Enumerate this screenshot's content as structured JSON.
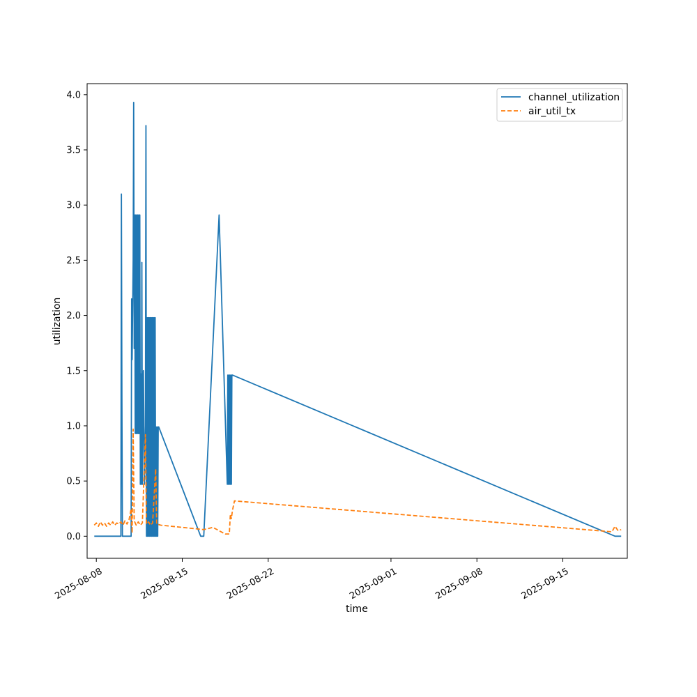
{
  "chart_data": {
    "type": "line",
    "title": "",
    "xlabel": "time",
    "ylabel": "utilization",
    "xlim": [
      "2025-08-07T06:00",
      "2025-09-20T06:00"
    ],
    "ylim": [
      -0.2,
      4.1
    ],
    "grid": false,
    "legend_position": "top-right",
    "x_ticks": [
      "2025-08-08",
      "2025-08-15",
      "2025-08-22",
      "2025-09-01",
      "2025-09-08",
      "2025-09-15"
    ],
    "y_ticks": [
      0.0,
      0.5,
      1.0,
      1.5,
      2.0,
      2.5,
      3.0,
      3.5,
      4.0
    ],
    "y_tick_labels": [
      "0.0",
      "0.5",
      "1.0",
      "1.5",
      "2.0",
      "2.5",
      "3.0",
      "3.5",
      "4.0"
    ],
    "series": [
      {
        "name": "channel_utilization",
        "color": "#1f77b4",
        "dash": "solid",
        "points": [
          [
            "2025-08-07T20:00",
            0.0
          ],
          [
            "2025-08-10T00:00",
            0.0
          ],
          [
            "2025-08-10T01:00",
            3.1
          ],
          [
            "2025-08-10T02:00",
            1.25
          ],
          [
            "2025-08-10T03:00",
            0.0
          ],
          [
            "2025-08-10T20:00",
            0.0
          ],
          [
            "2025-08-10T21:00",
            2.15
          ],
          [
            "2025-08-10T22:00",
            1.6
          ],
          [
            "2025-08-11T00:00",
            2.5
          ],
          [
            "2025-08-11T01:00",
            3.93
          ],
          [
            "2025-08-11T02:00",
            1.7
          ],
          [
            "2025-08-11T03:00",
            2.91
          ],
          [
            "2025-08-11T04:00",
            0.93
          ],
          [
            "2025-08-11T05:00",
            2.91
          ],
          [
            "2025-08-11T06:00",
            0.93
          ],
          [
            "2025-08-11T07:00",
            2.91
          ],
          [
            "2025-08-11T08:00",
            0.93
          ],
          [
            "2025-08-11T09:00",
            2.91
          ],
          [
            "2025-08-11T10:00",
            0.93
          ],
          [
            "2025-08-11T11:00",
            2.91
          ],
          [
            "2025-08-11T12:00",
            0.93
          ],
          [
            "2025-08-11T13:00",
            2.91
          ],
          [
            "2025-08-11T14:00",
            0.47
          ],
          [
            "2025-08-11T15:00",
            1.47
          ],
          [
            "2025-08-11T16:00",
            0.47
          ],
          [
            "2025-08-11T17:00",
            2.48
          ],
          [
            "2025-08-11T18:00",
            0.47
          ],
          [
            "2025-08-11T20:00",
            1.5
          ],
          [
            "2025-08-11T22:00",
            0.47
          ],
          [
            "2025-08-12T00:00",
            1.0
          ],
          [
            "2025-08-12T01:00",
            3.72
          ],
          [
            "2025-08-12T02:00",
            0.0
          ],
          [
            "2025-08-12T03:00",
            1.98
          ],
          [
            "2025-08-12T04:00",
            0.0
          ],
          [
            "2025-08-12T05:00",
            1.98
          ],
          [
            "2025-08-12T06:00",
            0.0
          ],
          [
            "2025-08-12T07:00",
            1.98
          ],
          [
            "2025-08-12T08:00",
            0.0
          ],
          [
            "2025-08-12T09:00",
            1.98
          ],
          [
            "2025-08-12T10:00",
            0.0
          ],
          [
            "2025-08-12T11:00",
            1.98
          ],
          [
            "2025-08-12T12:00",
            0.0
          ],
          [
            "2025-08-12T13:00",
            1.98
          ],
          [
            "2025-08-12T14:00",
            0.0
          ],
          [
            "2025-08-12T15:00",
            1.98
          ],
          [
            "2025-08-12T16:00",
            0.0
          ],
          [
            "2025-08-12T17:00",
            1.98
          ],
          [
            "2025-08-12T18:00",
            0.0
          ],
          [
            "2025-08-12T19:00",
            1.98
          ],
          [
            "2025-08-12T20:00",
            0.0
          ],
          [
            "2025-08-12T21:00",
            0.99
          ],
          [
            "2025-08-12T22:00",
            0.0
          ],
          [
            "2025-08-12T23:00",
            0.99
          ],
          [
            "2025-08-13T00:00",
            0.0
          ],
          [
            "2025-08-13T01:00",
            0.99
          ],
          [
            "2025-08-13T02:00",
            0.99
          ],
          [
            "2025-08-16T12:00",
            0.0
          ],
          [
            "2025-08-16T18:00",
            0.0
          ],
          [
            "2025-08-18T00:00",
            2.91
          ],
          [
            "2025-08-18T16:00",
            0.47
          ],
          [
            "2025-08-18T17:00",
            1.46
          ],
          [
            "2025-08-18T18:00",
            0.47
          ],
          [
            "2025-08-18T19:00",
            1.46
          ],
          [
            "2025-08-18T20:00",
            0.47
          ],
          [
            "2025-08-18T21:00",
            1.46
          ],
          [
            "2025-08-18T22:00",
            0.47
          ],
          [
            "2025-08-18T23:00",
            1.46
          ],
          [
            "2025-08-19T00:00",
            0.47
          ],
          [
            "2025-08-19T01:00",
            1.46
          ],
          [
            "2025-08-19T02:00",
            1.46
          ],
          [
            "2025-09-19T06:00",
            0.0
          ],
          [
            "2025-09-19T18:00",
            0.0
          ]
        ]
      },
      {
        "name": "air_util_tx",
        "color": "#ff7f0e",
        "dash": "dashed",
        "points": [
          [
            "2025-08-07T20:00",
            0.1
          ],
          [
            "2025-08-08T00:00",
            0.12
          ],
          [
            "2025-08-08T04:00",
            0.09
          ],
          [
            "2025-08-08T08:00",
            0.13
          ],
          [
            "2025-08-08T12:00",
            0.1
          ],
          [
            "2025-08-08T16:00",
            0.12
          ],
          [
            "2025-08-08T20:00",
            0.09
          ],
          [
            "2025-08-09T00:00",
            0.12
          ],
          [
            "2025-08-09T04:00",
            0.1
          ],
          [
            "2025-08-09T08:00",
            0.13
          ],
          [
            "2025-08-09T12:00",
            0.1
          ],
          [
            "2025-08-09T16:00",
            0.12
          ],
          [
            "2025-08-09T20:00",
            0.11
          ],
          [
            "2025-08-10T00:00",
            0.13
          ],
          [
            "2025-08-10T04:00",
            0.1
          ],
          [
            "2025-08-10T08:00",
            0.14
          ],
          [
            "2025-08-10T12:00",
            0.11
          ],
          [
            "2025-08-10T16:00",
            0.15
          ],
          [
            "2025-08-10T20:00",
            0.25
          ],
          [
            "2025-08-10T22:00",
            0.03
          ],
          [
            "2025-08-11T00:00",
            0.97
          ],
          [
            "2025-08-11T02:00",
            0.14
          ],
          [
            "2025-08-11T06:00",
            0.1
          ],
          [
            "2025-08-11T10:00",
            0.13
          ],
          [
            "2025-08-11T14:00",
            0.1
          ],
          [
            "2025-08-11T18:00",
            0.12
          ],
          [
            "2025-08-12T00:00",
            0.92
          ],
          [
            "2025-08-12T02:00",
            0.11
          ],
          [
            "2025-08-12T06:00",
            0.13
          ],
          [
            "2025-08-12T10:00",
            0.1
          ],
          [
            "2025-08-12T14:00",
            0.12
          ],
          [
            "2025-08-12T20:00",
            0.61
          ],
          [
            "2025-08-12T22:00",
            0.11
          ],
          [
            "2025-08-13T06:00",
            0.1
          ],
          [
            "2025-08-16T18:00",
            0.06
          ],
          [
            "2025-08-17T12:00",
            0.08
          ],
          [
            "2025-08-18T12:00",
            0.02
          ],
          [
            "2025-08-18T20:00",
            0.02
          ],
          [
            "2025-08-18T22:00",
            0.2
          ],
          [
            "2025-08-19T00:00",
            0.16
          ],
          [
            "2025-08-19T02:00",
            0.23
          ],
          [
            "2025-08-19T06:00",
            0.32
          ],
          [
            "2025-09-19T00:00",
            0.04
          ],
          [
            "2025-09-19T06:00",
            0.09
          ],
          [
            "2025-09-19T12:00",
            0.05
          ],
          [
            "2025-09-19T18:00",
            0.06
          ]
        ]
      }
    ]
  }
}
